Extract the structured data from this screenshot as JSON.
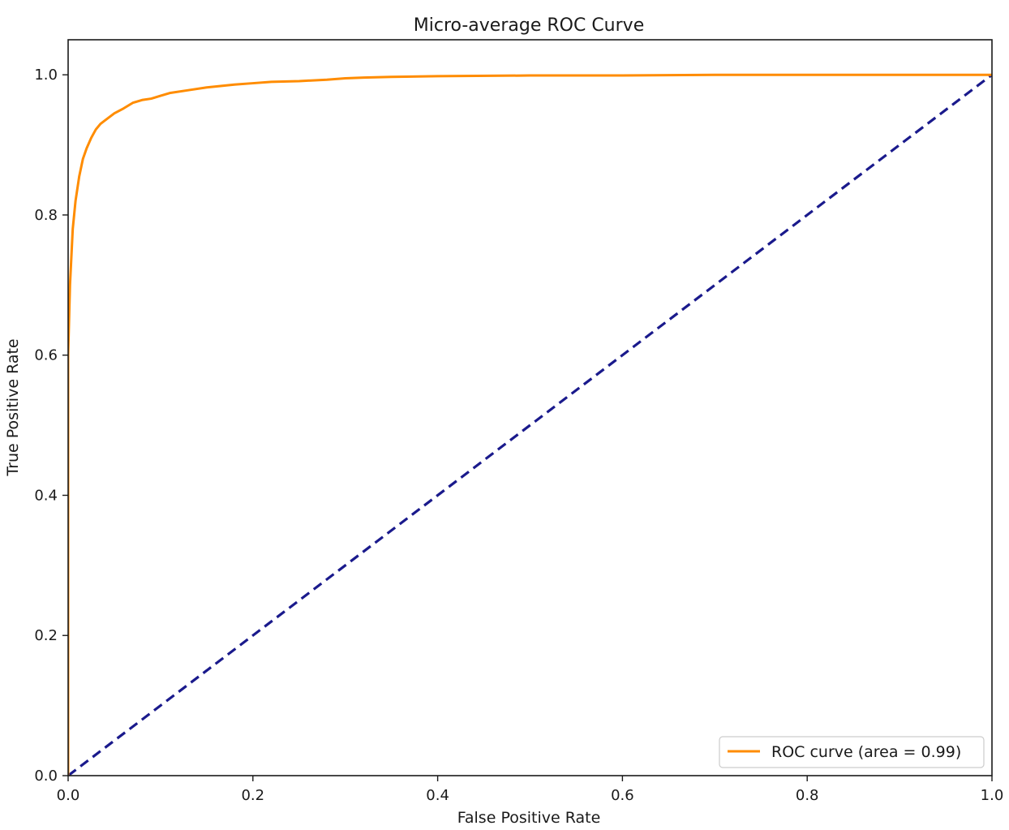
{
  "chart_data": {
    "type": "line",
    "title": "Micro-average ROC Curve",
    "xlabel": "False Positive Rate",
    "ylabel": "True Positive Rate",
    "xlim": [
      0.0,
      1.0
    ],
    "ylim": [
      0.0,
      1.05
    ],
    "xticks": [
      0.0,
      0.2,
      0.4,
      0.6,
      0.8,
      1.0
    ],
    "yticks": [
      0.0,
      0.2,
      0.4,
      0.6,
      0.8,
      1.0
    ],
    "xtick_labels": [
      "0.0",
      "0.2",
      "0.4",
      "0.6",
      "0.8",
      "1.0"
    ],
    "ytick_labels": [
      "0.0",
      "0.2",
      "0.4",
      "0.6",
      "0.8",
      "1.0"
    ],
    "grid": false,
    "legend_position": "lower right",
    "series": [
      {
        "name": "ROC curve (area = 0.99)",
        "color": "#ff8c00",
        "style": "solid",
        "x": [
          0.0,
          0.0,
          0.002,
          0.005,
          0.008,
          0.012,
          0.016,
          0.02,
          0.025,
          0.03,
          0.035,
          0.04,
          0.05,
          0.06,
          0.07,
          0.08,
          0.09,
          0.1,
          0.11,
          0.13,
          0.15,
          0.18,
          0.2,
          0.22,
          0.25,
          0.28,
          0.3,
          0.32,
          0.35,
          0.4,
          0.5,
          0.6,
          0.7,
          0.8,
          0.9,
          1.0
        ],
        "y": [
          0.0,
          0.6,
          0.7,
          0.78,
          0.82,
          0.855,
          0.88,
          0.895,
          0.91,
          0.922,
          0.93,
          0.935,
          0.945,
          0.952,
          0.96,
          0.964,
          0.966,
          0.97,
          0.974,
          0.978,
          0.982,
          0.986,
          0.988,
          0.99,
          0.991,
          0.993,
          0.995,
          0.996,
          0.997,
          0.998,
          0.999,
          0.999,
          1.0,
          1.0,
          1.0,
          1.0
        ]
      },
      {
        "name": "",
        "color": "#1a1a8c",
        "style": "dashed",
        "x": [
          0.0,
          1.0
        ],
        "y": [
          0.0,
          1.0
        ]
      }
    ]
  }
}
